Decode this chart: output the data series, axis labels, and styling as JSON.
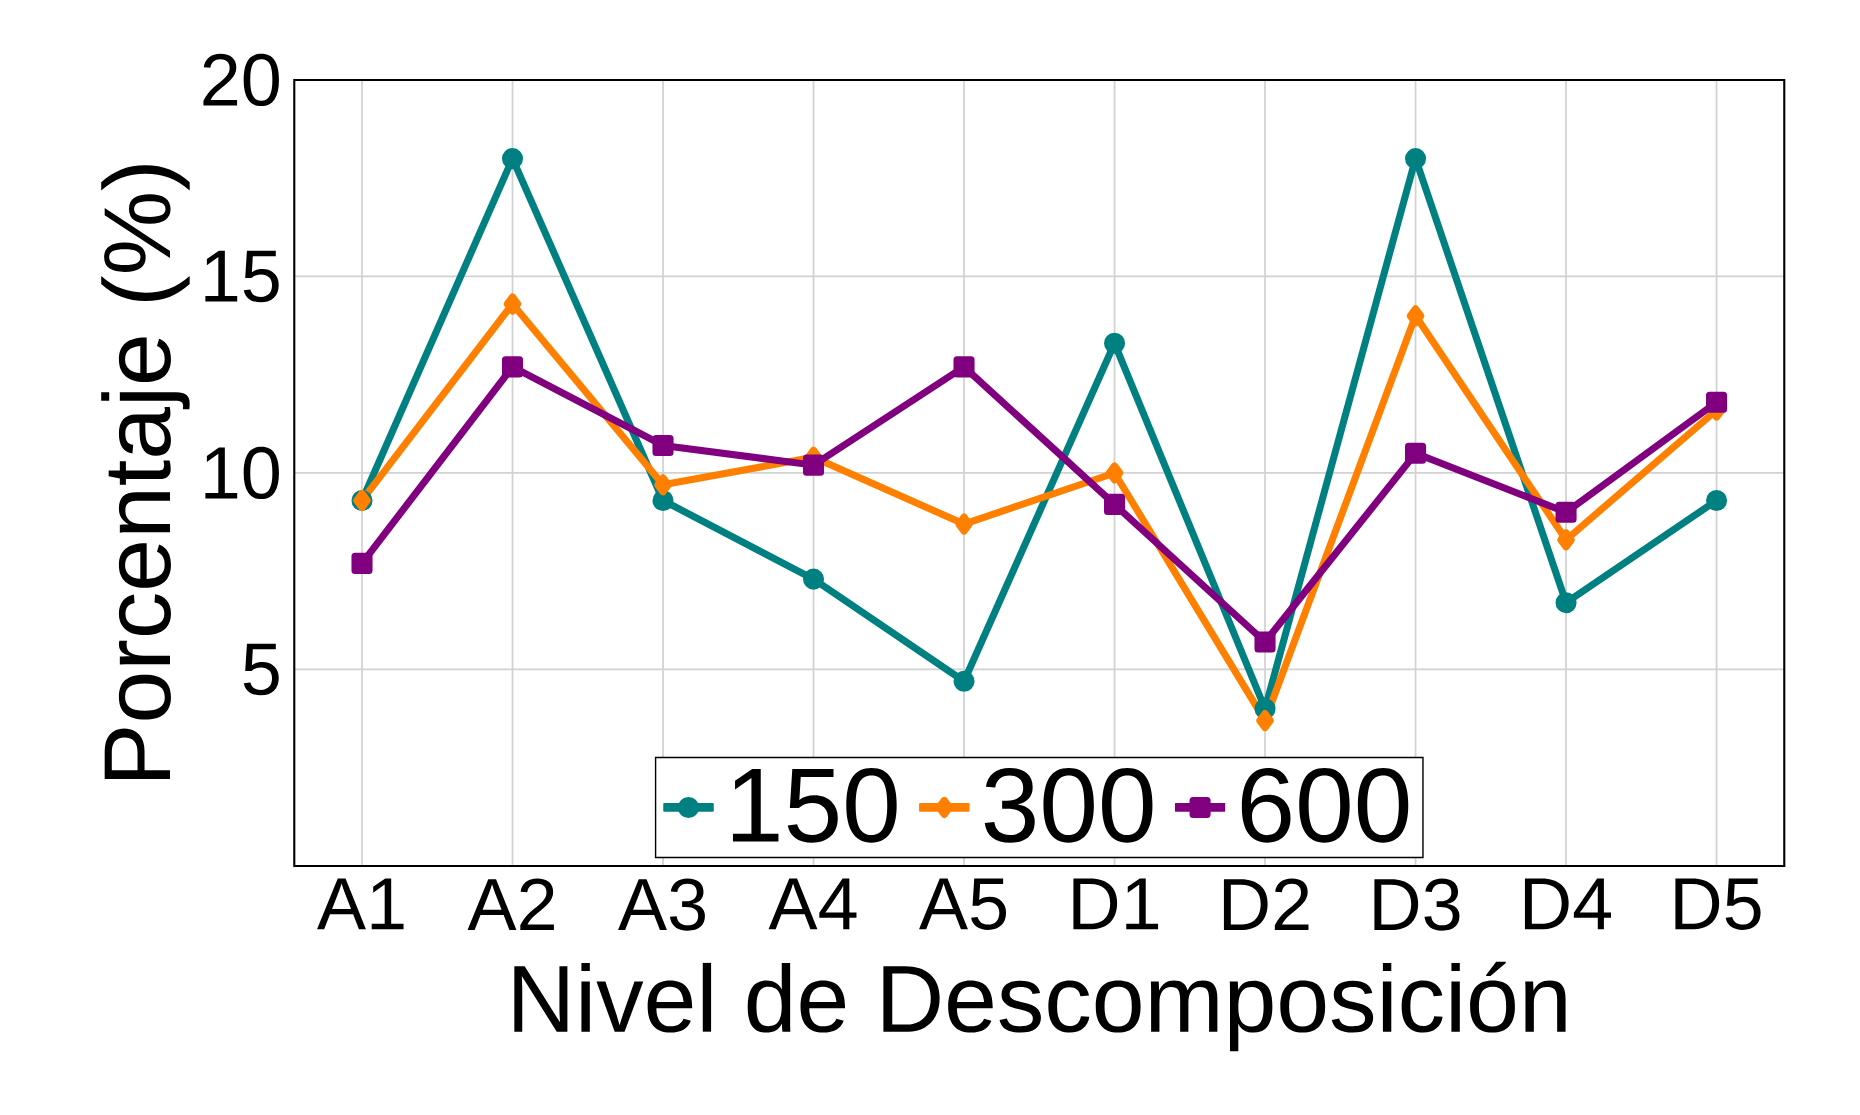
{
  "chart_data": {
    "type": "line",
    "xlabel": "Nivel de Descomposición",
    "ylabel": "Porcentaje (%)",
    "categories": [
      "A1",
      "A2",
      "A3",
      "A4",
      "A5",
      "D1",
      "D2",
      "D3",
      "D4",
      "D5"
    ],
    "series": [
      {
        "name": "150",
        "color": "#008080",
        "marker": "circle",
        "values": [
          9.3,
          18.0,
          9.3,
          7.3,
          4.7,
          13.3,
          4.0,
          18.0,
          6.7,
          9.3
        ]
      },
      {
        "name": "300",
        "color": "#ff8000",
        "marker": "diamond",
        "values": [
          9.3,
          14.3,
          9.7,
          10.4,
          8.7,
          10.0,
          3.7,
          14.0,
          8.3,
          11.6
        ]
      },
      {
        "name": "600",
        "color": "#800080",
        "marker": "square",
        "values": [
          7.7,
          12.7,
          10.7,
          10.2,
          12.7,
          9.2,
          5.7,
          10.5,
          9.0,
          11.8
        ]
      }
    ],
    "ylim": [
      0,
      20
    ],
    "yticks": [
      5,
      10,
      15,
      20
    ],
    "grid": true,
    "legend": "bottom",
    "line_style": "solid"
  }
}
